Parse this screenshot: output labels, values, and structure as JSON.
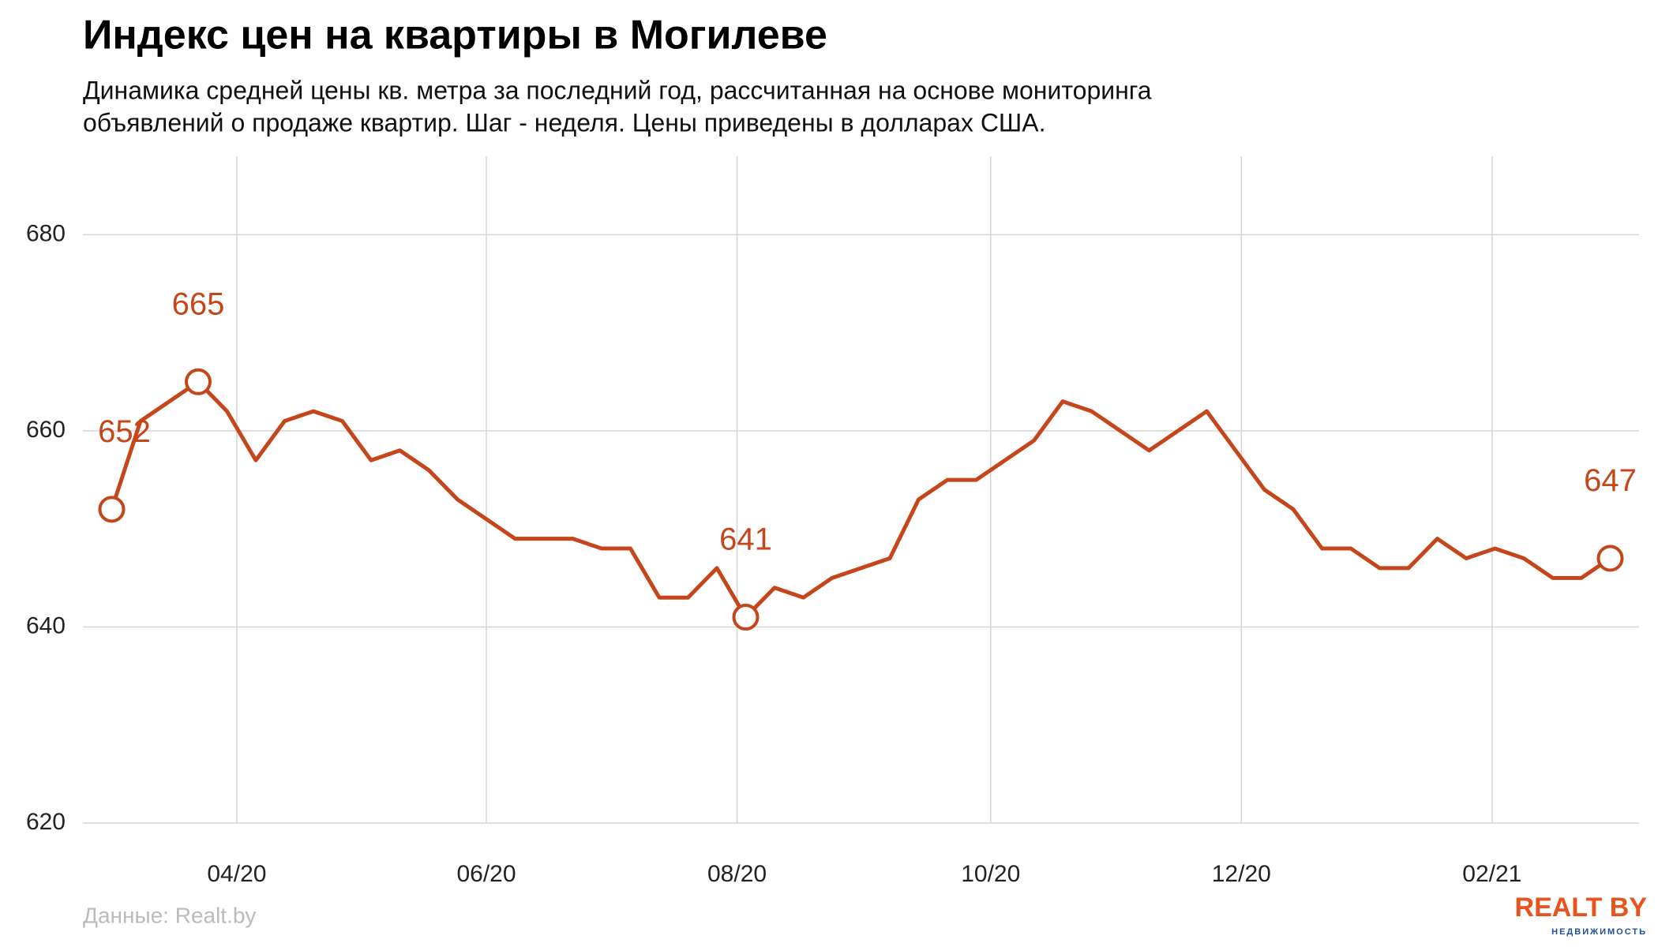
{
  "chart_data": {
    "type": "line",
    "title": "Индекс цен на квартиры в Могилеве",
    "subtitle": [
      "Динамика средней цены кв. метра за последний год, рассчитанная на основе мониторинга",
      "объявлений о продаже квартир. Шаг - неделя. Цены приведены в долларах США."
    ],
    "values": [
      652,
      661,
      663,
      665,
      662,
      657,
      661,
      662,
      661,
      657,
      658,
      656,
      653,
      651,
      649,
      649,
      649,
      648,
      648,
      643,
      643,
      646,
      641,
      644,
      643,
      645,
      646,
      647,
      653,
      655,
      655,
      657,
      659,
      663,
      662,
      660,
      658,
      660,
      662,
      658,
      654,
      652,
      648,
      648,
      646,
      646,
      649,
      647,
      648,
      647,
      645,
      645,
      647
    ],
    "color": "#c4461a",
    "labeled_points": [
      0,
      3,
      22,
      52
    ],
    "xlim": [
      -1,
      53
    ],
    "xticks": [
      {
        "value": 4.34,
        "label": "04/20"
      },
      {
        "value": 13.0,
        "label": "06/20"
      },
      {
        "value": 21.7,
        "label": "08/20"
      },
      {
        "value": 30.5,
        "label": "10/20"
      },
      {
        "value": 39.2,
        "label": "12/20"
      },
      {
        "value": 47.9,
        "label": "02/21"
      }
    ],
    "ylim": [
      620,
      688
    ],
    "yticks": [
      620,
      640,
      660,
      680
    ],
    "grid": true,
    "source": "Данные: Realt.by",
    "logo": "REALT BY",
    "logo_subtitle": "НЕДВИЖИМОСТЬ"
  }
}
